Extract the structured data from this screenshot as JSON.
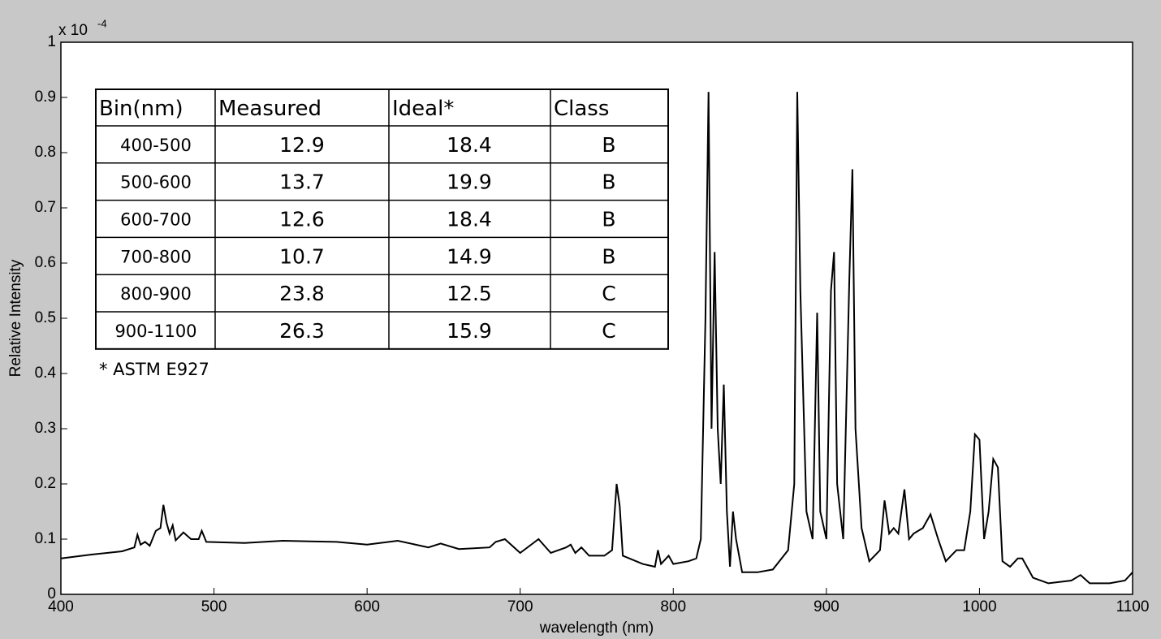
{
  "chart_data": {
    "type": "line",
    "xlabel": "wavelength (nm)",
    "ylabel": "Relative Intensity",
    "y_multiplier": {
      "base": "x 10",
      "exponent": "-4"
    },
    "color": "#000000",
    "xlim": [
      400,
      1100
    ],
    "xticks": [
      400,
      500,
      600,
      700,
      800,
      900,
      1000,
      1100
    ],
    "ylim": [
      0,
      1
    ],
    "yticks": [
      0,
      0.1,
      0.2,
      0.3,
      0.4,
      0.5,
      0.6,
      0.7,
      0.8,
      0.9,
      1
    ],
    "x": [
      400,
      420,
      440,
      448,
      450,
      452,
      455,
      458,
      462,
      465,
      467,
      469,
      471,
      473,
      475,
      480,
      485,
      490,
      492,
      495,
      520,
      545,
      580,
      600,
      620,
      640,
      648,
      660,
      680,
      684,
      690,
      700,
      712,
      720,
      730,
      733,
      736,
      740,
      745,
      755,
      760,
      763,
      765,
      767,
      780,
      788,
      790,
      792,
      797,
      800,
      810,
      815,
      818,
      821,
      823,
      825,
      827,
      829,
      831,
      833,
      835,
      837,
      839,
      841,
      845,
      855,
      865,
      875,
      879,
      881,
      883,
      887,
      891,
      894,
      896,
      900,
      903,
      905,
      907,
      911,
      915,
      917,
      919,
      923,
      928,
      935,
      938,
      941,
      944,
      947,
      951,
      954,
      957,
      963,
      968,
      973,
      978,
      985,
      990,
      994,
      997,
      1000,
      1003,
      1006,
      1009,
      1012,
      1015,
      1020,
      1025,
      1028,
      1035,
      1045,
      1060,
      1066,
      1072,
      1085,
      1095,
      1100
    ],
    "values": [
      0.065,
      0.072,
      0.078,
      0.085,
      0.108,
      0.09,
      0.095,
      0.088,
      0.115,
      0.12,
      0.162,
      0.13,
      0.11,
      0.125,
      0.098,
      0.112,
      0.1,
      0.1,
      0.115,
      0.095,
      0.093,
      0.097,
      0.095,
      0.09,
      0.097,
      0.085,
      0.092,
      0.082,
      0.085,
      0.095,
      0.1,
      0.075,
      0.1,
      0.075,
      0.085,
      0.09,
      0.075,
      0.085,
      0.07,
      0.07,
      0.08,
      0.2,
      0.16,
      0.07,
      0.055,
      0.05,
      0.08,
      0.055,
      0.07,
      0.055,
      0.06,
      0.065,
      0.1,
      0.5,
      0.91,
      0.3,
      0.62,
      0.3,
      0.2,
      0.38,
      0.15,
      0.05,
      0.15,
      0.1,
      0.04,
      0.04,
      0.045,
      0.08,
      0.2,
      0.91,
      0.55,
      0.15,
      0.1,
      0.51,
      0.15,
      0.1,
      0.55,
      0.62,
      0.2,
      0.1,
      0.57,
      0.77,
      0.3,
      0.12,
      0.06,
      0.08,
      0.17,
      0.11,
      0.12,
      0.11,
      0.19,
      0.1,
      0.11,
      0.12,
      0.145,
      0.1,
      0.06,
      0.08,
      0.08,
      0.15,
      0.29,
      0.28,
      0.1,
      0.15,
      0.245,
      0.23,
      0.06,
      0.05,
      0.065,
      0.065,
      0.03,
      0.02,
      0.025,
      0.035,
      0.02,
      0.02,
      0.025,
      0.04
    ]
  },
  "table": {
    "header": [
      "Bin(nm)",
      "Measured",
      "Ideal*",
      "Class"
    ],
    "rows": [
      [
        "400-500",
        "12.9",
        "18.4",
        "B"
      ],
      [
        "500-600",
        "13.7",
        "19.9",
        "B"
      ],
      [
        "600-700",
        "12.6",
        "18.4",
        "B"
      ],
      [
        "700-800",
        "10.7",
        "14.9",
        "B"
      ],
      [
        "800-900",
        "23.8",
        "12.5",
        "C"
      ],
      [
        "900-1100",
        "26.3",
        "15.9",
        "C"
      ]
    ],
    "note": "* ASTM E927"
  }
}
